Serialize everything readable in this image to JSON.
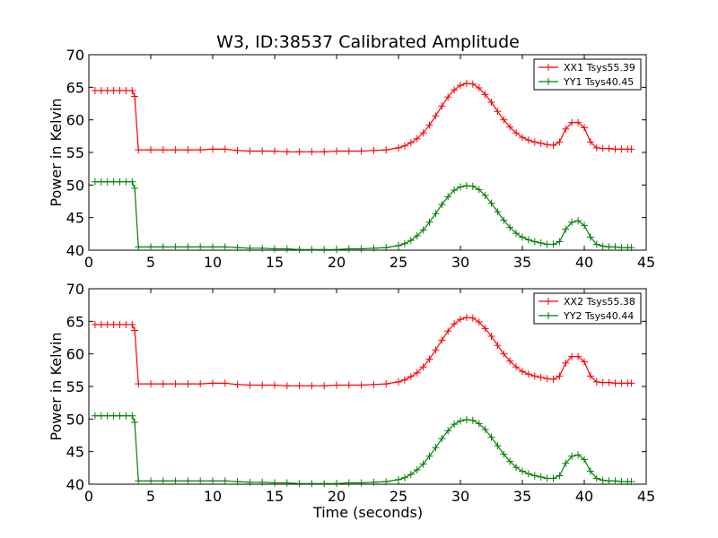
{
  "figure": {
    "title": "W3, ID:38537 Calibrated Amplitude",
    "xlabel": "Time (seconds)"
  },
  "chart_data": [
    {
      "type": "line",
      "ylabel": "Power in Kelvin",
      "xlim": [
        0,
        45
      ],
      "ylim": [
        40,
        70
      ],
      "xticks": [
        0,
        5,
        10,
        15,
        20,
        25,
        30,
        35,
        40,
        45
      ],
      "yticks": [
        40,
        45,
        50,
        55,
        60,
        65,
        70
      ],
      "grid": false,
      "legend": "top-right",
      "series": [
        {
          "name": "XX1 Tsys55.39",
          "color": "#ff0000",
          "marker": "plus",
          "x": [
            0.5,
            1.0,
            1.5,
            2.0,
            2.5,
            3.0,
            3.5,
            3.7,
            4.0,
            5.0,
            6.0,
            7.0,
            8.0,
            9.0,
            10.0,
            11.0,
            12.0,
            13.0,
            14.0,
            15.0,
            16.0,
            17.0,
            18.0,
            19.0,
            20.0,
            21.0,
            22.0,
            23.0,
            24.0,
            25.0,
            25.5,
            26.0,
            26.5,
            27.0,
            27.5,
            28.0,
            28.5,
            29.0,
            29.5,
            30.0,
            30.5,
            31.0,
            31.5,
            32.0,
            32.5,
            33.0,
            33.5,
            34.0,
            34.5,
            35.0,
            35.5,
            36.0,
            36.5,
            37.0,
            37.5,
            38.0,
            38.5,
            39.0,
            39.5,
            40.0,
            40.5,
            41.0,
            41.5,
            42.0,
            42.5,
            43.0,
            43.5,
            43.8
          ],
          "y": [
            64.5,
            64.5,
            64.5,
            64.5,
            64.5,
            64.5,
            64.5,
            63.6,
            55.4,
            55.4,
            55.4,
            55.4,
            55.4,
            55.4,
            55.5,
            55.5,
            55.3,
            55.2,
            55.2,
            55.2,
            55.1,
            55.1,
            55.1,
            55.1,
            55.2,
            55.2,
            55.2,
            55.3,
            55.4,
            55.7,
            56.0,
            56.5,
            57.1,
            58.0,
            59.2,
            60.6,
            62.1,
            63.5,
            64.6,
            65.3,
            65.6,
            65.5,
            64.9,
            63.9,
            62.7,
            61.3,
            60.0,
            58.9,
            58.0,
            57.3,
            56.9,
            56.6,
            56.4,
            56.2,
            56.1,
            56.6,
            58.6,
            59.6,
            59.6,
            58.8,
            56.6,
            55.7,
            55.6,
            55.6,
            55.5,
            55.5,
            55.5,
            55.5
          ]
        },
        {
          "name": "YY1 Tsys40.45",
          "color": "#008000",
          "marker": "plus",
          "x": [
            0.5,
            1.0,
            1.5,
            2.0,
            2.5,
            3.0,
            3.5,
            3.7,
            4.0,
            5.0,
            6.0,
            7.0,
            8.0,
            9.0,
            10.0,
            11.0,
            12.0,
            13.0,
            14.0,
            15.0,
            16.0,
            17.0,
            18.0,
            19.0,
            20.0,
            21.0,
            22.0,
            23.0,
            24.0,
            25.0,
            25.5,
            26.0,
            26.5,
            27.0,
            27.5,
            28.0,
            28.5,
            29.0,
            29.5,
            30.0,
            30.5,
            31.0,
            31.5,
            32.0,
            32.5,
            33.0,
            33.5,
            34.0,
            34.5,
            35.0,
            35.5,
            36.0,
            36.5,
            37.0,
            37.5,
            38.0,
            38.5,
            39.0,
            39.5,
            40.0,
            40.5,
            41.0,
            41.5,
            42.0,
            42.5,
            43.0,
            43.5,
            43.8
          ],
          "y": [
            50.5,
            50.5,
            50.5,
            50.5,
            50.5,
            50.5,
            50.5,
            49.5,
            40.5,
            40.5,
            40.5,
            40.5,
            40.5,
            40.5,
            40.5,
            40.5,
            40.4,
            40.3,
            40.3,
            40.2,
            40.2,
            40.1,
            40.1,
            40.1,
            40.1,
            40.2,
            40.2,
            40.3,
            40.4,
            40.7,
            41.0,
            41.5,
            42.2,
            43.1,
            44.3,
            45.6,
            47.0,
            48.2,
            49.2,
            49.7,
            49.9,
            49.8,
            49.3,
            48.4,
            47.2,
            45.9,
            44.6,
            43.5,
            42.6,
            42.0,
            41.6,
            41.3,
            41.1,
            40.9,
            40.9,
            41.3,
            43.2,
            44.3,
            44.5,
            43.8,
            42.0,
            40.9,
            40.6,
            40.5,
            40.5,
            40.4,
            40.4,
            40.4
          ]
        }
      ]
    },
    {
      "type": "line",
      "ylabel": "Power in Kelvin",
      "xlabel": "Time (seconds)",
      "xlim": [
        0,
        45
      ],
      "ylim": [
        40,
        70
      ],
      "xticks": [
        0,
        5,
        10,
        15,
        20,
        25,
        30,
        35,
        40,
        45
      ],
      "yticks": [
        40,
        45,
        50,
        55,
        60,
        65,
        70
      ],
      "grid": false,
      "legend": "top-right",
      "series": [
        {
          "name": "XX2 Tsys55.38",
          "color": "#ff0000",
          "marker": "plus",
          "x": [
            0.5,
            1.0,
            1.5,
            2.0,
            2.5,
            3.0,
            3.5,
            3.7,
            4.0,
            5.0,
            6.0,
            7.0,
            8.0,
            9.0,
            10.0,
            11.0,
            12.0,
            13.0,
            14.0,
            15.0,
            16.0,
            17.0,
            18.0,
            19.0,
            20.0,
            21.0,
            22.0,
            23.0,
            24.0,
            25.0,
            25.5,
            26.0,
            26.5,
            27.0,
            27.5,
            28.0,
            28.5,
            29.0,
            29.5,
            30.0,
            30.5,
            31.0,
            31.5,
            32.0,
            32.5,
            33.0,
            33.5,
            34.0,
            34.5,
            35.0,
            35.5,
            36.0,
            36.5,
            37.0,
            37.5,
            38.0,
            38.5,
            39.0,
            39.5,
            40.0,
            40.5,
            41.0,
            41.5,
            42.0,
            42.5,
            43.0,
            43.5,
            43.8
          ],
          "y": [
            64.5,
            64.5,
            64.5,
            64.5,
            64.5,
            64.5,
            64.5,
            63.6,
            55.4,
            55.4,
            55.4,
            55.4,
            55.4,
            55.4,
            55.5,
            55.5,
            55.3,
            55.2,
            55.2,
            55.2,
            55.1,
            55.1,
            55.1,
            55.1,
            55.2,
            55.2,
            55.2,
            55.3,
            55.4,
            55.7,
            56.0,
            56.5,
            57.1,
            58.0,
            59.2,
            60.6,
            62.1,
            63.5,
            64.6,
            65.3,
            65.6,
            65.5,
            64.9,
            63.9,
            62.7,
            61.3,
            60.0,
            58.9,
            58.0,
            57.3,
            56.9,
            56.6,
            56.4,
            56.2,
            56.1,
            56.6,
            58.6,
            59.6,
            59.6,
            58.8,
            56.6,
            55.7,
            55.6,
            55.6,
            55.5,
            55.5,
            55.5,
            55.5
          ]
        },
        {
          "name": "YY2 Tsys40.44",
          "color": "#008000",
          "marker": "plus",
          "x": [
            0.5,
            1.0,
            1.5,
            2.0,
            2.5,
            3.0,
            3.5,
            3.7,
            4.0,
            5.0,
            6.0,
            7.0,
            8.0,
            9.0,
            10.0,
            11.0,
            12.0,
            13.0,
            14.0,
            15.0,
            16.0,
            17.0,
            18.0,
            19.0,
            20.0,
            21.0,
            22.0,
            23.0,
            24.0,
            25.0,
            25.5,
            26.0,
            26.5,
            27.0,
            27.5,
            28.0,
            28.5,
            29.0,
            29.5,
            30.0,
            30.5,
            31.0,
            31.5,
            32.0,
            32.5,
            33.0,
            33.5,
            34.0,
            34.5,
            35.0,
            35.5,
            36.0,
            36.5,
            37.0,
            37.5,
            38.0,
            38.5,
            39.0,
            39.5,
            40.0,
            40.5,
            41.0,
            41.5,
            42.0,
            42.5,
            43.0,
            43.5,
            43.8
          ],
          "y": [
            50.5,
            50.5,
            50.5,
            50.5,
            50.5,
            50.5,
            50.5,
            49.5,
            40.5,
            40.5,
            40.5,
            40.5,
            40.5,
            40.5,
            40.5,
            40.5,
            40.4,
            40.3,
            40.3,
            40.2,
            40.2,
            40.1,
            40.1,
            40.1,
            40.1,
            40.2,
            40.2,
            40.3,
            40.4,
            40.7,
            41.0,
            41.5,
            42.2,
            43.1,
            44.3,
            45.6,
            47.0,
            48.2,
            49.2,
            49.7,
            49.9,
            49.8,
            49.3,
            48.4,
            47.2,
            45.9,
            44.6,
            43.5,
            42.6,
            42.0,
            41.6,
            41.3,
            41.1,
            40.9,
            40.9,
            41.3,
            43.2,
            44.3,
            44.5,
            43.8,
            42.0,
            40.9,
            40.6,
            40.5,
            40.5,
            40.4,
            40.4,
            40.4
          ]
        }
      ]
    }
  ]
}
